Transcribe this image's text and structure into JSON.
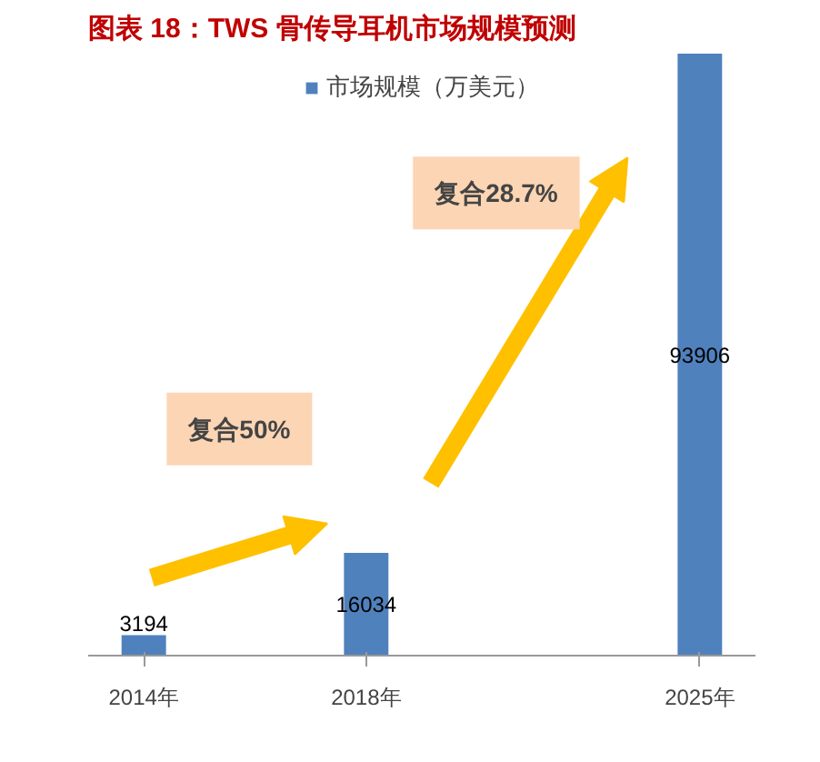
{
  "chart_data": {
    "type": "bar",
    "title": "图表 18：TWS 骨传导耳机市场规模预测",
    "categories": [
      "2014年",
      null,
      "2018年",
      null,
      null,
      "2025年"
    ],
    "series": [
      {
        "name": "市场规模（万美元）",
        "color": "#4f81bd",
        "values": [
          3194,
          null,
          16034,
          null,
          null,
          93906
        ]
      }
    ],
    "data_labels": true,
    "legend": "top",
    "annotations": [
      "复合50%",
      "复合28.7%"
    ]
  }
}
